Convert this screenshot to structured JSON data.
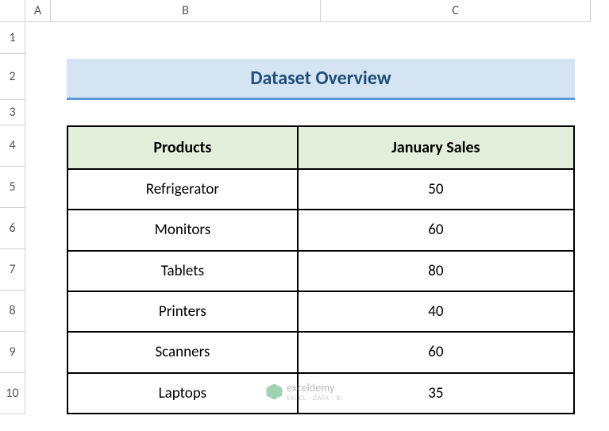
{
  "columns": [
    "A",
    "B",
    "C"
  ],
  "rows": [
    "1",
    "2",
    "3",
    "4",
    "5",
    "6",
    "7",
    "8",
    "9",
    "10"
  ],
  "title": "Dataset Overview",
  "table": {
    "headers": [
      "Products",
      "January Sales"
    ],
    "data": [
      [
        "Refrigerator",
        "50"
      ],
      [
        "Monitors",
        "60"
      ],
      [
        "Tablets",
        "80"
      ],
      [
        "Printers",
        "40"
      ],
      [
        "Scanners",
        "60"
      ],
      [
        "Laptops",
        "35"
      ]
    ],
    "header_bg": "#e2efda",
    "border_color": "#000000",
    "cell_bg": "#ffffff"
  },
  "title_style": {
    "bg": "#d5e4f2",
    "text_color": "#1f4e79",
    "underline_color": "#5b9bd5"
  },
  "watermark": {
    "text": "exceldemy",
    "subtitle": "EXCEL · DATA · BI"
  }
}
